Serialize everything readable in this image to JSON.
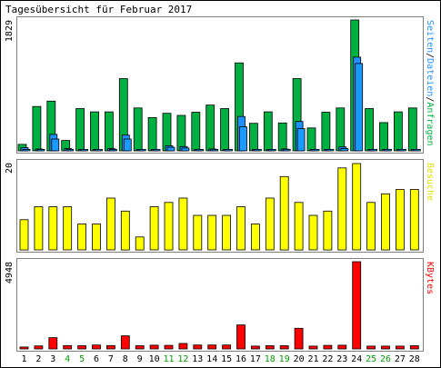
{
  "title": "Tagesübersicht für Februar 2017",
  "colors": {
    "border": "#000000",
    "frame": "#7f7f7f",
    "bg": "#ffffff",
    "pages": "#1e90ff",
    "files": "#1e90ff",
    "hits": "#00b040",
    "visits": "#ffff00",
    "kbytes": "#ff0000",
    "weekday_label": "#000000",
    "weekend_label": "#00a000"
  },
  "chart_data": [
    {
      "type": "bar",
      "name": "requests-panel",
      "ymax_label": "1829",
      "ylim": [
        0,
        1829
      ],
      "legend": {
        "label1": "Seiten",
        "sep1": "/",
        "label2": "Dateien",
        "sep2": "/",
        "label3": "Anfragen"
      },
      "categories": [
        "1",
        "2",
        "3",
        "4",
        "5",
        "6",
        "7",
        "8",
        "9",
        "10",
        "11",
        "12",
        "13",
        "14",
        "15",
        "16",
        "17",
        "18",
        "19",
        "20",
        "21",
        "22",
        "23",
        "24",
        "25",
        "26",
        "27",
        "28"
      ],
      "weekend_days": [
        "4",
        "5",
        "11",
        "12",
        "18",
        "19",
        "25",
        "26"
      ],
      "series": [
        {
          "name": "Anfragen",
          "values": [
            90,
            620,
            695,
            145,
            590,
            545,
            545,
            1010,
            600,
            465,
            525,
            495,
            540,
            640,
            590,
            1230,
            385,
            545,
            390,
            1010,
            320,
            540,
            600,
            1829,
            590,
            395,
            545,
            600
          ]
        },
        {
          "name": "Dateien",
          "values": [
            45,
            25,
            230,
            30,
            20,
            20,
            30,
            220,
            20,
            20,
            70,
            60,
            20,
            25,
            20,
            480,
            20,
            20,
            25,
            410,
            20,
            20,
            55,
            1310,
            20,
            20,
            20,
            20
          ]
        },
        {
          "name": "Seiten",
          "values": [
            20,
            20,
            165,
            20,
            20,
            20,
            20,
            165,
            20,
            20,
            50,
            40,
            20,
            20,
            20,
            335,
            20,
            20,
            20,
            310,
            20,
            20,
            30,
            1220,
            20,
            20,
            20,
            20
          ]
        }
      ]
    },
    {
      "type": "bar",
      "name": "visits-panel",
      "ymax_label": "20",
      "ylim": [
        0,
        20
      ],
      "legend": {
        "label1": "Besuche"
      },
      "categories": [
        "1",
        "2",
        "3",
        "4",
        "5",
        "6",
        "7",
        "8",
        "9",
        "10",
        "11",
        "12",
        "13",
        "14",
        "15",
        "16",
        "17",
        "18",
        "19",
        "20",
        "21",
        "22",
        "23",
        "24",
        "25",
        "26",
        "27",
        "28"
      ],
      "series": [
        {
          "name": "Besuche",
          "values": [
            7,
            10,
            10,
            10,
            6,
            6,
            12,
            9,
            3,
            10,
            11,
            12,
            8,
            8,
            8,
            10,
            6,
            12,
            17,
            11,
            8,
            9,
            19,
            20,
            11,
            13,
            14,
            14
          ]
        }
      ]
    },
    {
      "type": "bar",
      "name": "kbytes-panel",
      "ymax_label": "4948",
      "ylim": [
        0,
        4948
      ],
      "legend": {
        "label1": "KBytes"
      },
      "categories": [
        "1",
        "2",
        "3",
        "4",
        "5",
        "6",
        "7",
        "8",
        "9",
        "10",
        "11",
        "12",
        "13",
        "14",
        "15",
        "16",
        "17",
        "18",
        "19",
        "20",
        "21",
        "22",
        "23",
        "24",
        "25",
        "26",
        "27",
        "28"
      ],
      "series": [
        {
          "name": "KBytes",
          "values": [
            110,
            170,
            640,
            190,
            180,
            220,
            190,
            740,
            180,
            210,
            200,
            310,
            220,
            220,
            220,
            1360,
            160,
            180,
            180,
            1170,
            160,
            200,
            210,
            4948,
            160,
            160,
            160,
            180
          ]
        }
      ]
    }
  ]
}
